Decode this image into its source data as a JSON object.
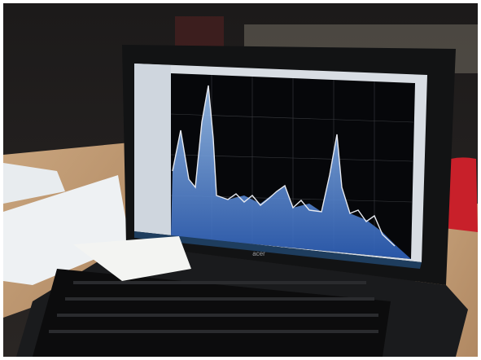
{
  "photo": {
    "laptop_brand": "acer"
  }
}
